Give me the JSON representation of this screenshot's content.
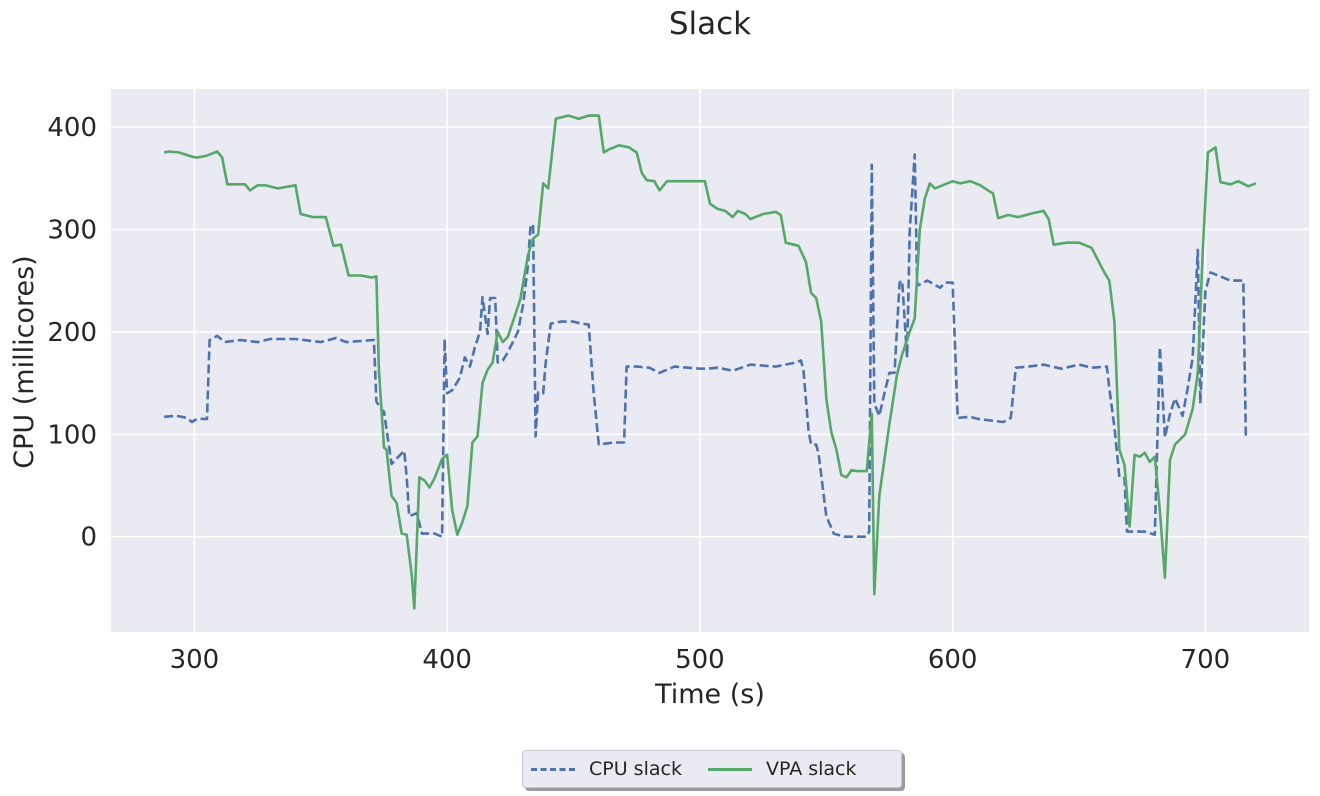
{
  "chart_data": {
    "type": "line",
    "title": "Slack",
    "xlabel": "Time (s)",
    "ylabel": "CPU (millicores)",
    "xlim": [
      267,
      741
    ],
    "ylim": [
      -93,
      437
    ],
    "xticks": [
      300,
      400,
      500,
      600,
      700
    ],
    "yticks": [
      0,
      100,
      200,
      300,
      400
    ],
    "grid": true,
    "legend_position": "bottom-center",
    "colors": {
      "background": "#eaeaf2",
      "grid": "#ffffff",
      "cpu": "#4c72b0",
      "vpa": "#55a868"
    },
    "series": [
      {
        "name": "CPU slack",
        "style": "dashed",
        "color": "#4c72b0",
        "points": [
          [
            288,
            117
          ],
          [
            293,
            118
          ],
          [
            297,
            116
          ],
          [
            299,
            112
          ],
          [
            301,
            115
          ],
          [
            305,
            115
          ],
          [
            306,
            192
          ],
          [
            309,
            196
          ],
          [
            312,
            190
          ],
          [
            318,
            192
          ],
          [
            325,
            190
          ],
          [
            330,
            193
          ],
          [
            340,
            193
          ],
          [
            350,
            190
          ],
          [
            356,
            194
          ],
          [
            360,
            190
          ],
          [
            371,
            192
          ],
          [
            372,
            132
          ],
          [
            374,
            124
          ],
          [
            375,
            122
          ],
          [
            378,
            71
          ],
          [
            383,
            84
          ],
          [
            384,
            58
          ],
          [
            385,
            20
          ],
          [
            388,
            23
          ],
          [
            390,
            3
          ],
          [
            395,
            3
          ],
          [
            398,
            0
          ],
          [
            399,
            193
          ],
          [
            400,
            140
          ],
          [
            402,
            143
          ],
          [
            405,
            155
          ],
          [
            407,
            175
          ],
          [
            409,
            166
          ],
          [
            411,
            185
          ],
          [
            413,
            200
          ],
          [
            414,
            234
          ],
          [
            416,
            198
          ],
          [
            417,
            233
          ],
          [
            419,
            233
          ],
          [
            420,
            170
          ],
          [
            422,
            172
          ],
          [
            424,
            180
          ],
          [
            428,
            200
          ],
          [
            430,
            226
          ],
          [
            432,
            265
          ],
          [
            433,
            305
          ],
          [
            434,
            303
          ],
          [
            435,
            98
          ],
          [
            436,
            141
          ],
          [
            438,
            140
          ],
          [
            439,
            170
          ],
          [
            441,
            208
          ],
          [
            445,
            210
          ],
          [
            450,
            210
          ],
          [
            453,
            208
          ],
          [
            456,
            207
          ],
          [
            458,
            140
          ],
          [
            460,
            90
          ],
          [
            466,
            92
          ],
          [
            470,
            92
          ],
          [
            471,
            166
          ],
          [
            475,
            166
          ],
          [
            480,
            165
          ],
          [
            484,
            160
          ],
          [
            490,
            166
          ],
          [
            500,
            164
          ],
          [
            503,
            164
          ],
          [
            507,
            165
          ],
          [
            513,
            162
          ],
          [
            520,
            168
          ],
          [
            530,
            166
          ],
          [
            538,
            170
          ],
          [
            540,
            172
          ],
          [
            541,
            162
          ],
          [
            543,
            103
          ],
          [
            544,
            90
          ],
          [
            546,
            90
          ],
          [
            547,
            80
          ],
          [
            550,
            20
          ],
          [
            553,
            3
          ],
          [
            557,
            0
          ],
          [
            563,
            0
          ],
          [
            566,
            0
          ],
          [
            567,
            5
          ],
          [
            568,
            363
          ],
          [
            569,
            130
          ],
          [
            571,
            118
          ],
          [
            573,
            140
          ],
          [
            575,
            160
          ],
          [
            577,
            160
          ],
          [
            579,
            248
          ],
          [
            580,
            250
          ],
          [
            582,
            175
          ],
          [
            583,
            298
          ],
          [
            585,
            373
          ],
          [
            586,
            245
          ],
          [
            590,
            250
          ],
          [
            595,
            243
          ],
          [
            597,
            248
          ],
          [
            600,
            248
          ],
          [
            602,
            116
          ],
          [
            607,
            117
          ],
          [
            610,
            115
          ],
          [
            620,
            112
          ],
          [
            623,
            116
          ],
          [
            625,
            165
          ],
          [
            630,
            166
          ],
          [
            636,
            168
          ],
          [
            643,
            164
          ],
          [
            650,
            168
          ],
          [
            655,
            165
          ],
          [
            661,
            166
          ],
          [
            662,
            145
          ],
          [
            664,
            107
          ],
          [
            666,
            58
          ],
          [
            668,
            57
          ],
          [
            669,
            5
          ],
          [
            673,
            5
          ],
          [
            676,
            5
          ],
          [
            680,
            2
          ],
          [
            682,
            185
          ],
          [
            684,
            97
          ],
          [
            686,
            120
          ],
          [
            688,
            135
          ],
          [
            691,
            118
          ],
          [
            693,
            145
          ],
          [
            695,
            175
          ],
          [
            697,
            280
          ],
          [
            698,
            130
          ],
          [
            700,
            240
          ],
          [
            702,
            258
          ],
          [
            705,
            255
          ],
          [
            710,
            250
          ],
          [
            715,
            250
          ],
          [
            716,
            100
          ],
          [
            718,
            100
          ]
        ]
      },
      {
        "name": "VPA slack",
        "style": "solid",
        "color": "#55a868",
        "points": [
          [
            288,
            375
          ],
          [
            290,
            376
          ],
          [
            294,
            375
          ],
          [
            299,
            371
          ],
          [
            301,
            370
          ],
          [
            305,
            372
          ],
          [
            309,
            376
          ],
          [
            311,
            370
          ],
          [
            313,
            344
          ],
          [
            320,
            344
          ],
          [
            322,
            338
          ],
          [
            325,
            343
          ],
          [
            328,
            343
          ],
          [
            333,
            340
          ],
          [
            340,
            343
          ],
          [
            342,
            315
          ],
          [
            347,
            312
          ],
          [
            352,
            312
          ],
          [
            355,
            284
          ],
          [
            358,
            285
          ],
          [
            361,
            255
          ],
          [
            366,
            255
          ],
          [
            370,
            253
          ],
          [
            372,
            254
          ],
          [
            373,
            163
          ],
          [
            375,
            87
          ],
          [
            376,
            85
          ],
          [
            378,
            40
          ],
          [
            380,
            33
          ],
          [
            382,
            3
          ],
          [
            384,
            2
          ],
          [
            386,
            -38
          ],
          [
            387,
            -70
          ],
          [
            389,
            58
          ],
          [
            391,
            55
          ],
          [
            393,
            48
          ],
          [
            395,
            57
          ],
          [
            398,
            76
          ],
          [
            400,
            80
          ],
          [
            402,
            26
          ],
          [
            404,
            2
          ],
          [
            406,
            14
          ],
          [
            408,
            30
          ],
          [
            410,
            92
          ],
          [
            412,
            98
          ],
          [
            414,
            150
          ],
          [
            416,
            163
          ],
          [
            418,
            170
          ],
          [
            420,
            200
          ],
          [
            422,
            190
          ],
          [
            424,
            195
          ],
          [
            426,
            210
          ],
          [
            429,
            232
          ],
          [
            432,
            275
          ],
          [
            434,
            291
          ],
          [
            436,
            295
          ],
          [
            438,
            345
          ],
          [
            440,
            340
          ],
          [
            443,
            408
          ],
          [
            448,
            411
          ],
          [
            452,
            408
          ],
          [
            456,
            411
          ],
          [
            460,
            411
          ],
          [
            462,
            375
          ],
          [
            464,
            378
          ],
          [
            468,
            382
          ],
          [
            472,
            380
          ],
          [
            475,
            375
          ],
          [
            477,
            355
          ],
          [
            479,
            348
          ],
          [
            482,
            347
          ],
          [
            484,
            338
          ],
          [
            487,
            347
          ],
          [
            492,
            347
          ],
          [
            498,
            347
          ],
          [
            502,
            347
          ],
          [
            504,
            325
          ],
          [
            507,
            320
          ],
          [
            510,
            318
          ],
          [
            513,
            312
          ],
          [
            515,
            318
          ],
          [
            518,
            315
          ],
          [
            520,
            310
          ],
          [
            525,
            315
          ],
          [
            530,
            317
          ],
          [
            532,
            314
          ],
          [
            534,
            287
          ],
          [
            539,
            284
          ],
          [
            542,
            268
          ],
          [
            544,
            238
          ],
          [
            546,
            233
          ],
          [
            548,
            210
          ],
          [
            550,
            135
          ],
          [
            552,
            102
          ],
          [
            554,
            85
          ],
          [
            556,
            60
          ],
          [
            558,
            58
          ],
          [
            560,
            65
          ],
          [
            562,
            64
          ],
          [
            566,
            64
          ],
          [
            568,
            120
          ],
          [
            569,
            -56
          ],
          [
            571,
            40
          ],
          [
            573,
            75
          ],
          [
            575,
            110
          ],
          [
            578,
            158
          ],
          [
            580,
            178
          ],
          [
            583,
            200
          ],
          [
            585,
            213
          ],
          [
            587,
            300
          ],
          [
            589,
            330
          ],
          [
            591,
            345
          ],
          [
            593,
            340
          ],
          [
            597,
            344
          ],
          [
            600,
            347
          ],
          [
            603,
            345
          ],
          [
            607,
            347
          ],
          [
            611,
            343
          ],
          [
            614,
            338
          ],
          [
            616,
            335
          ],
          [
            618,
            311
          ],
          [
            622,
            314
          ],
          [
            626,
            312
          ],
          [
            632,
            316
          ],
          [
            636,
            318
          ],
          [
            638,
            310
          ],
          [
            640,
            285
          ],
          [
            645,
            287
          ],
          [
            650,
            287
          ],
          [
            655,
            282
          ],
          [
            660,
            258
          ],
          [
            662,
            250
          ],
          [
            664,
            210
          ],
          [
            666,
            85
          ],
          [
            668,
            70
          ],
          [
            670,
            10
          ],
          [
            672,
            80
          ],
          [
            674,
            78
          ],
          [
            676,
            82
          ],
          [
            678,
            73
          ],
          [
            680,
            78
          ],
          [
            682,
            25
          ],
          [
            684,
            -40
          ],
          [
            686,
            75
          ],
          [
            688,
            90
          ],
          [
            692,
            100
          ],
          [
            695,
            125
          ],
          [
            697,
            160
          ],
          [
            699,
            280
          ],
          [
            701,
            375
          ],
          [
            704,
            380
          ],
          [
            706,
            346
          ],
          [
            710,
            344
          ],
          [
            713,
            347
          ],
          [
            717,
            342
          ],
          [
            720,
            345
          ]
        ]
      }
    ]
  },
  "legend": {
    "cpu_label": "CPU slack",
    "vpa_label": "VPA slack"
  }
}
